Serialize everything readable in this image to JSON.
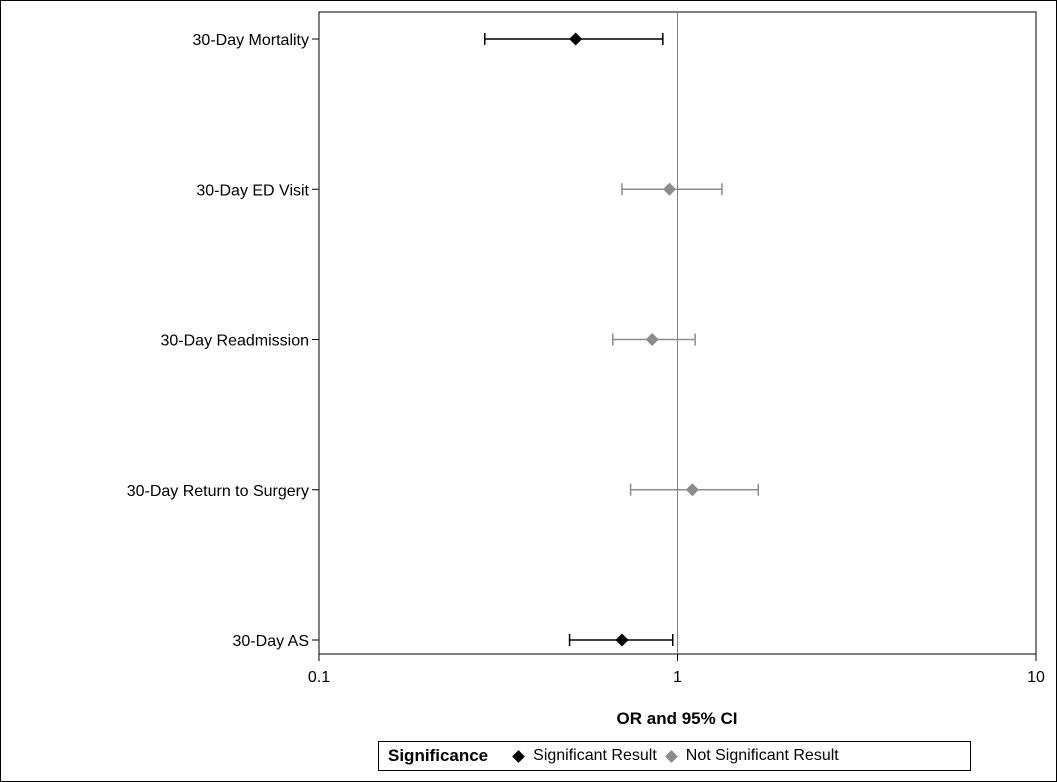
{
  "chart_data": {
    "type": "scatter",
    "subtype": "forest-plot",
    "xscale": "log",
    "xlim": [
      0.1,
      10
    ],
    "xticks": [
      0.1,
      1,
      10
    ],
    "xtick_labels": [
      "0.1",
      "1",
      "10"
    ],
    "xlabel": "OR and 95% CI",
    "reference_line": 1,
    "grid": false,
    "categories": [
      "30-Day Mortality",
      "30-Day ED Visit",
      "30-Day Readmission",
      "30-Day Return to Surgery",
      "30-Day AS"
    ],
    "estimates": [
      0.52,
      0.95,
      0.85,
      1.1,
      0.7
    ],
    "ci_lower": [
      0.29,
      0.7,
      0.66,
      0.74,
      0.5
    ],
    "ci_upper": [
      0.91,
      1.33,
      1.12,
      1.68,
      0.97
    ],
    "significance": [
      "Significant Result",
      "Not Significant Result",
      "Not Significant Result",
      "Not Significant Result",
      "Significant Result"
    ],
    "legend": {
      "title": "Significance",
      "placement": "bottom-center",
      "entries": [
        {
          "name": "Significant Result",
          "color": "#000000"
        },
        {
          "name": "Not Significant Result",
          "color": "#8c8c8c"
        }
      ]
    },
    "colors": {
      "significant": "#000000",
      "not_significant": "#8c8c8c",
      "reference": "#7f7f7f"
    }
  }
}
